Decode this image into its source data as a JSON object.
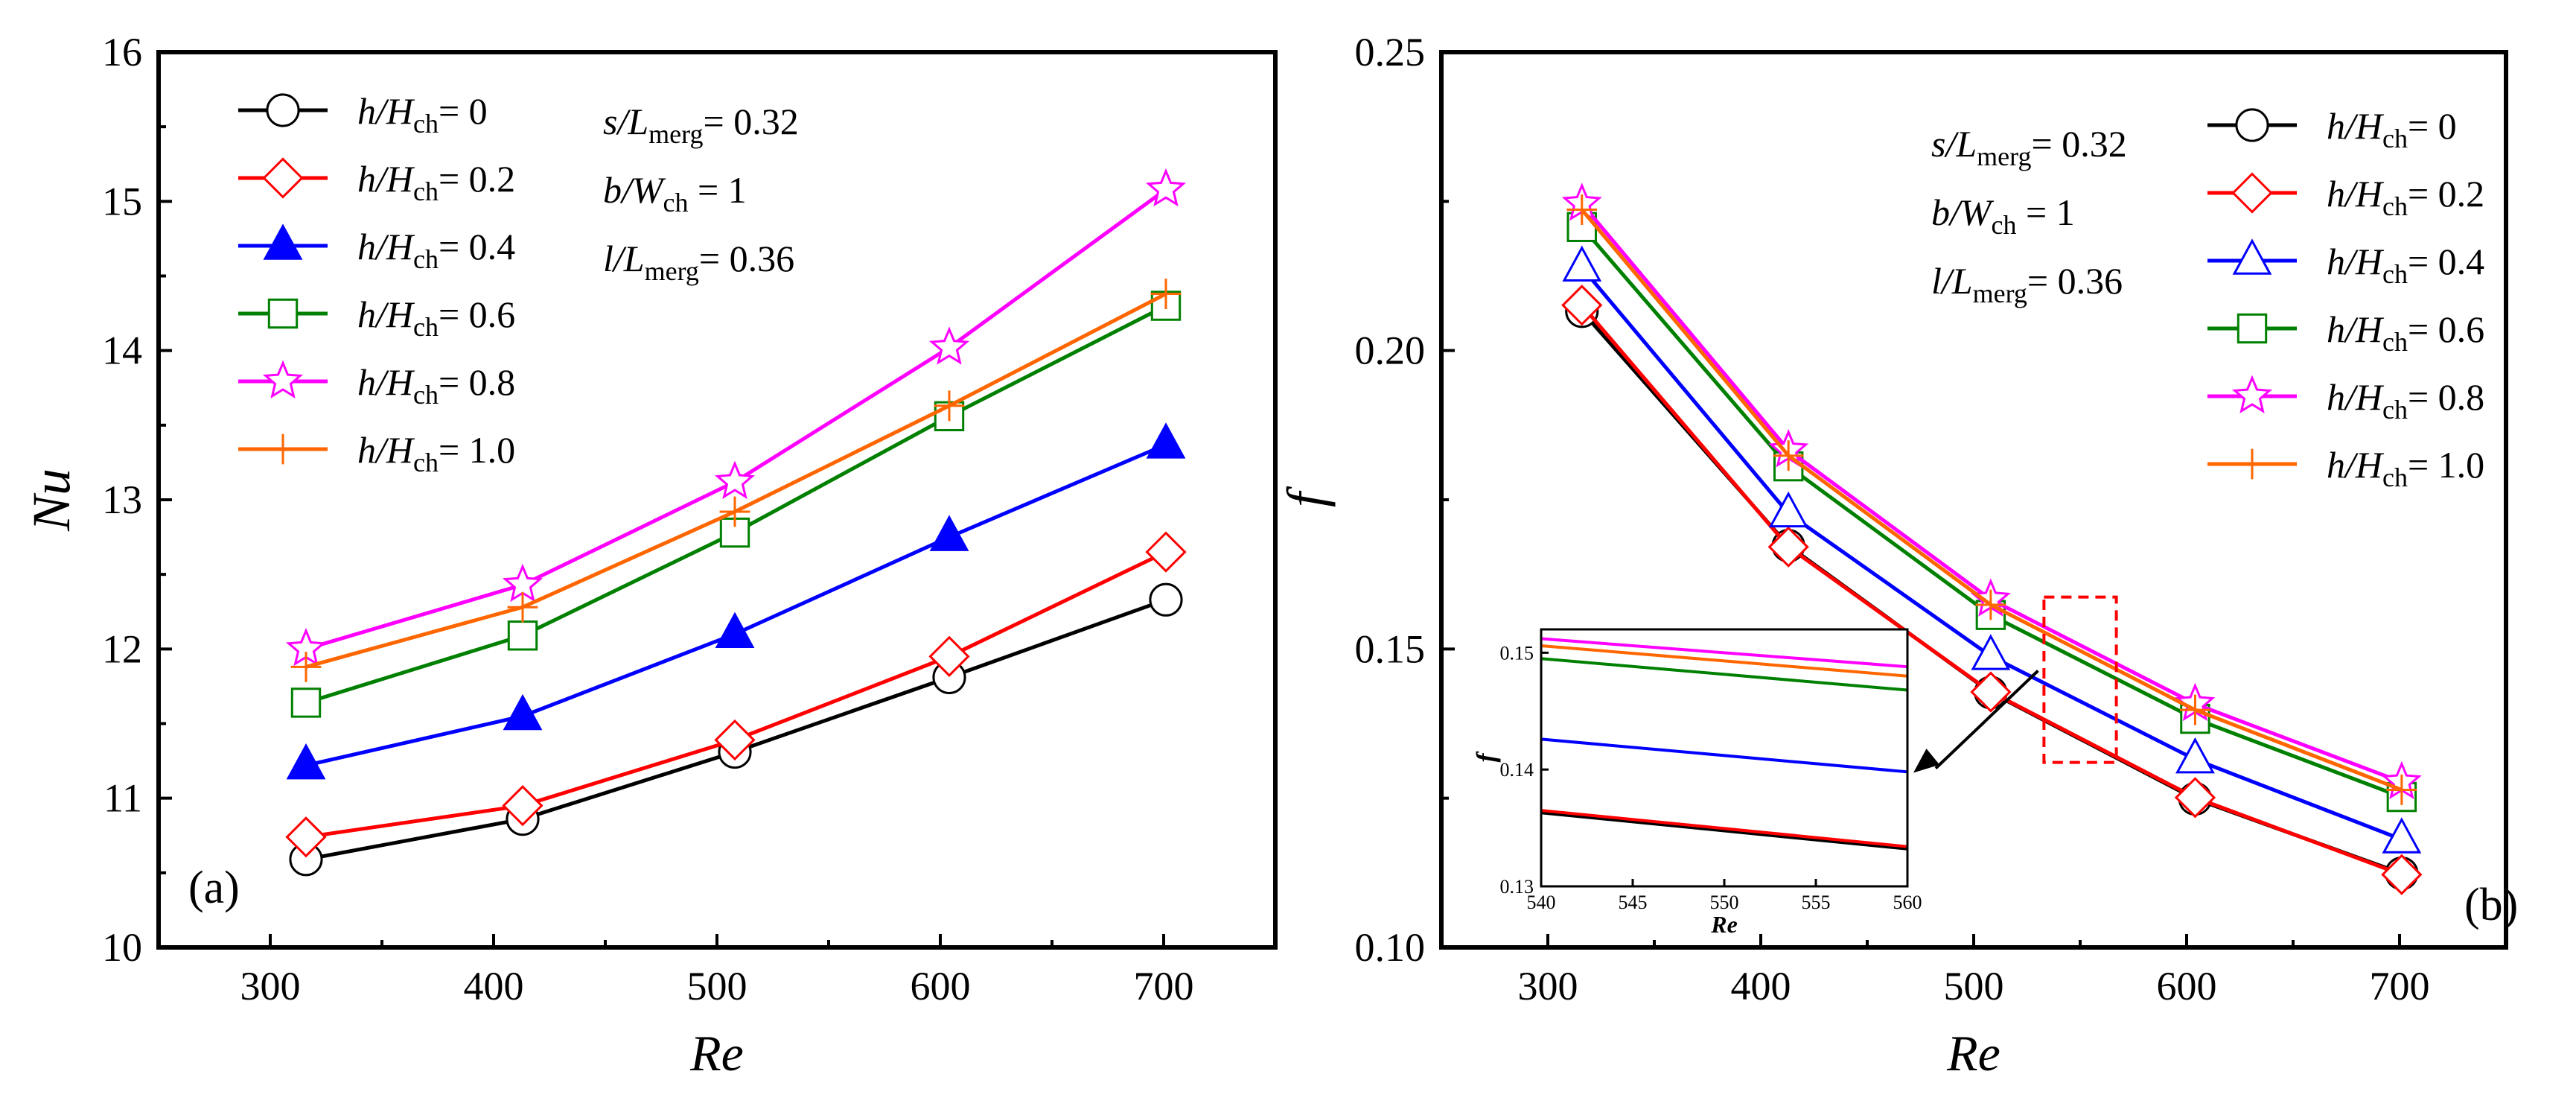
{
  "colors": {
    "black": "#000000",
    "red": "#ff0000",
    "blue": "#0000ff",
    "green": "#008000",
    "magenta": "#ff00ff",
    "orange": "#ff6600",
    "inset_box": "#ff0000"
  },
  "chart_data": [
    {
      "type": "line",
      "panel_label": "(a)",
      "xlabel": "Re",
      "ylabel": "Nu",
      "xlim": [
        250,
        750
      ],
      "ylim": [
        10,
        16
      ],
      "x_ticks": [
        "300",
        "400",
        "500",
        "600",
        "700"
      ],
      "y_ticks": [
        "10",
        "11",
        "12",
        "13",
        "14",
        "15",
        "16"
      ],
      "x": [
        316,
        413,
        508,
        604,
        701
      ],
      "grid": false,
      "legend_position": "top-left",
      "params": [
        "s/Lmerg= 0.32",
        "b/Wch = 1",
        "l/Lmerg= 0.36"
      ],
      "series": [
        {
          "name": "h/Hch= 0",
          "marker": "circle-open",
          "color": "#000000",
          "values": [
            10.59,
            10.86,
            11.31,
            11.81,
            12.33
          ]
        },
        {
          "name": "h/Hch= 0.2",
          "marker": "diamond-open",
          "color": "#ff0000",
          "values": [
            10.74,
            10.95,
            11.39,
            11.95,
            12.65
          ]
        },
        {
          "name": "h/Hch= 0.4",
          "marker": "triangle-filled",
          "color": "#0000ff",
          "values": [
            11.22,
            11.55,
            12.1,
            12.75,
            13.37
          ]
        },
        {
          "name": "h/Hch= 0.6",
          "marker": "square-open",
          "color": "#008000",
          "values": [
            11.64,
            12.09,
            12.78,
            13.56,
            14.3
          ]
        },
        {
          "name": "h/Hch= 0.8",
          "marker": "star-open",
          "color": "#ff00ff",
          "values": [
            12.0,
            12.43,
            13.12,
            14.02,
            15.08
          ]
        },
        {
          "name": "h/Hch= 1.0",
          "marker": "plus",
          "color": "#ff6600",
          "values": [
            11.88,
            12.28,
            12.92,
            13.63,
            14.38
          ]
        }
      ]
    },
    {
      "type": "line",
      "panel_label": "(b)",
      "xlabel": "Re",
      "ylabel": "f",
      "xlim": [
        250,
        750
      ],
      "ylim": [
        0.1,
        0.25
      ],
      "x_ticks": [
        "300",
        "400",
        "500",
        "600",
        "700"
      ],
      "y_ticks": [
        "0.10",
        "0.15",
        "0.20",
        "0.25"
      ],
      "x": [
        316,
        413,
        508,
        604,
        701
      ],
      "grid": false,
      "legend_position": "top-right",
      "params": [
        "s/Lmerg= 0.32",
        "b/Wch = 1",
        "l/Lmerg= 0.36"
      ],
      "series": [
        {
          "name": "h/Hch= 0",
          "marker": "circle-open",
          "color": "#000000",
          "values": [
            0.2066,
            0.1673,
            0.1427,
            0.1249,
            0.1124
          ]
        },
        {
          "name": "h/Hch= 0.2",
          "marker": "diamond-open",
          "color": "#ff0000",
          "values": [
            0.2076,
            0.1671,
            0.1428,
            0.1251,
            0.1122
          ]
        },
        {
          "name": "h/Hch= 0.4",
          "marker": "triangle-open",
          "color": "#0000ff",
          "values": [
            0.2139,
            0.1727,
            0.1488,
            0.1315,
            0.1181
          ]
        },
        {
          "name": "h/Hch= 0.6",
          "marker": "square-open",
          "color": "#008000",
          "values": [
            0.2207,
            0.1806,
            0.1557,
            0.1383,
            0.1252
          ]
        },
        {
          "name": "h/Hch= 0.8",
          "marker": "star-open",
          "color": "#ff00ff",
          "values": [
            0.2246,
            0.1833,
            0.1583,
            0.1408,
            0.1277
          ]
        },
        {
          "name": "h/Hch= 1.0",
          "marker": "plus",
          "color": "#ff6600",
          "values": [
            0.2236,
            0.1824,
            0.1574,
            0.1398,
            0.1264
          ]
        }
      ],
      "inset": {
        "type": "line",
        "xlabel": "Re",
        "ylabel": "f",
        "xlim": [
          540,
          560
        ],
        "ylim": [
          0.13,
          0.152
        ],
        "x_ticks": [
          "540",
          "545",
          "550",
          "555",
          "560"
        ],
        "y_ticks": [
          "0.13",
          "0.14",
          "0.15"
        ],
        "x": [
          540,
          560
        ],
        "series": [
          {
            "name": "h/Hch= 0",
            "color": "#000000",
            "values": [
              0.1363,
              0.1332
            ]
          },
          {
            "name": "h/Hch= 0.2",
            "color": "#ff0000",
            "values": [
              0.1365,
              0.1334
            ]
          },
          {
            "name": "h/Hch= 0.4",
            "color": "#0000ff",
            "values": [
              0.1426,
              0.1398
            ]
          },
          {
            "name": "h/Hch= 0.6",
            "color": "#008000",
            "values": [
              0.1495,
              0.1468
            ]
          },
          {
            "name": "h/Hch= 1.0",
            "color": "#ff6600",
            "values": [
              0.1506,
              0.148
            ]
          },
          {
            "name": "h/Hch= 0.8",
            "color": "#ff00ff",
            "values": [
              0.1512,
              0.1488
            ]
          }
        ],
        "zoom_box": {
          "xlim": [
            533,
            567
          ],
          "ylim": [
            0.131,
            0.1587
          ]
        }
      }
    }
  ]
}
